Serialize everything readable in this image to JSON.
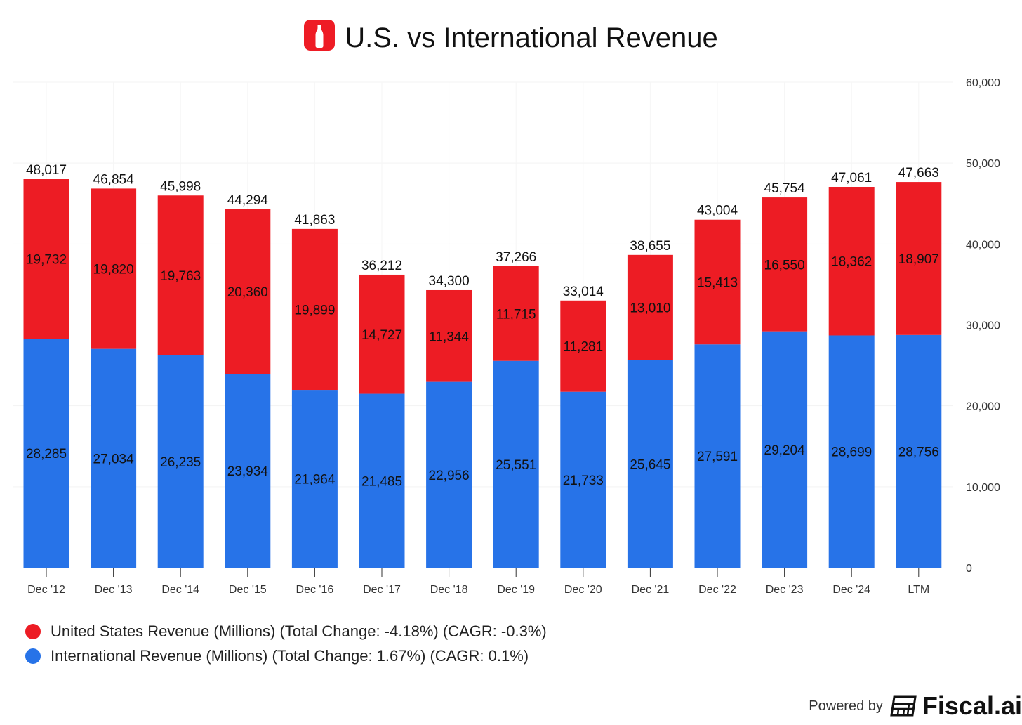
{
  "title": "U.S. vs International Revenue",
  "colors": {
    "us": "#ed1c24",
    "intl": "#2773e8",
    "logo": "#ee1c25"
  },
  "chart_data": {
    "type": "bar",
    "stacked": true,
    "title": "U.S. vs International Revenue",
    "categories": [
      "Dec '12",
      "Dec '13",
      "Dec '14",
      "Dec '15",
      "Dec '16",
      "Dec '17",
      "Dec '18",
      "Dec '19",
      "Dec '20",
      "Dec '21",
      "Dec '22",
      "Dec '23",
      "Dec '24",
      "LTM"
    ],
    "series": [
      {
        "name": "International Revenue (Millions)",
        "values": [
          28285,
          27034,
          26235,
          23934,
          21964,
          21485,
          22956,
          25551,
          21733,
          25645,
          27591,
          29204,
          28699,
          28756
        ]
      },
      {
        "name": "United States Revenue (Millions)",
        "values": [
          19732,
          19820,
          19763,
          20360,
          19899,
          14727,
          11344,
          11715,
          11281,
          13010,
          15413,
          16550,
          18362,
          18907
        ]
      }
    ],
    "totals": [
      48017,
      46854,
      45998,
      44294,
      41863,
      36212,
      34300,
      37266,
      33014,
      38655,
      43004,
      45754,
      47061,
      47663
    ],
    "ylim": [
      0,
      60000
    ],
    "yticks": [
      "0",
      "10,000",
      "20,000",
      "30,000",
      "40,000",
      "50,000",
      "60,000"
    ],
    "ytick_values": [
      0,
      10000,
      20000,
      30000,
      40000,
      50000,
      60000
    ],
    "yaxis_position": "right",
    "grid": true,
    "legend_position": "bottom-left",
    "legend": [
      "United States Revenue (Millions) (Total Change: -4.18%) (CAGR: -0.3%)",
      "International Revenue (Millions) (Total Change: 1.67%) (CAGR: 0.1%)"
    ]
  },
  "footer": {
    "powered_by": "Powered by",
    "brand": "Fiscal.ai"
  }
}
